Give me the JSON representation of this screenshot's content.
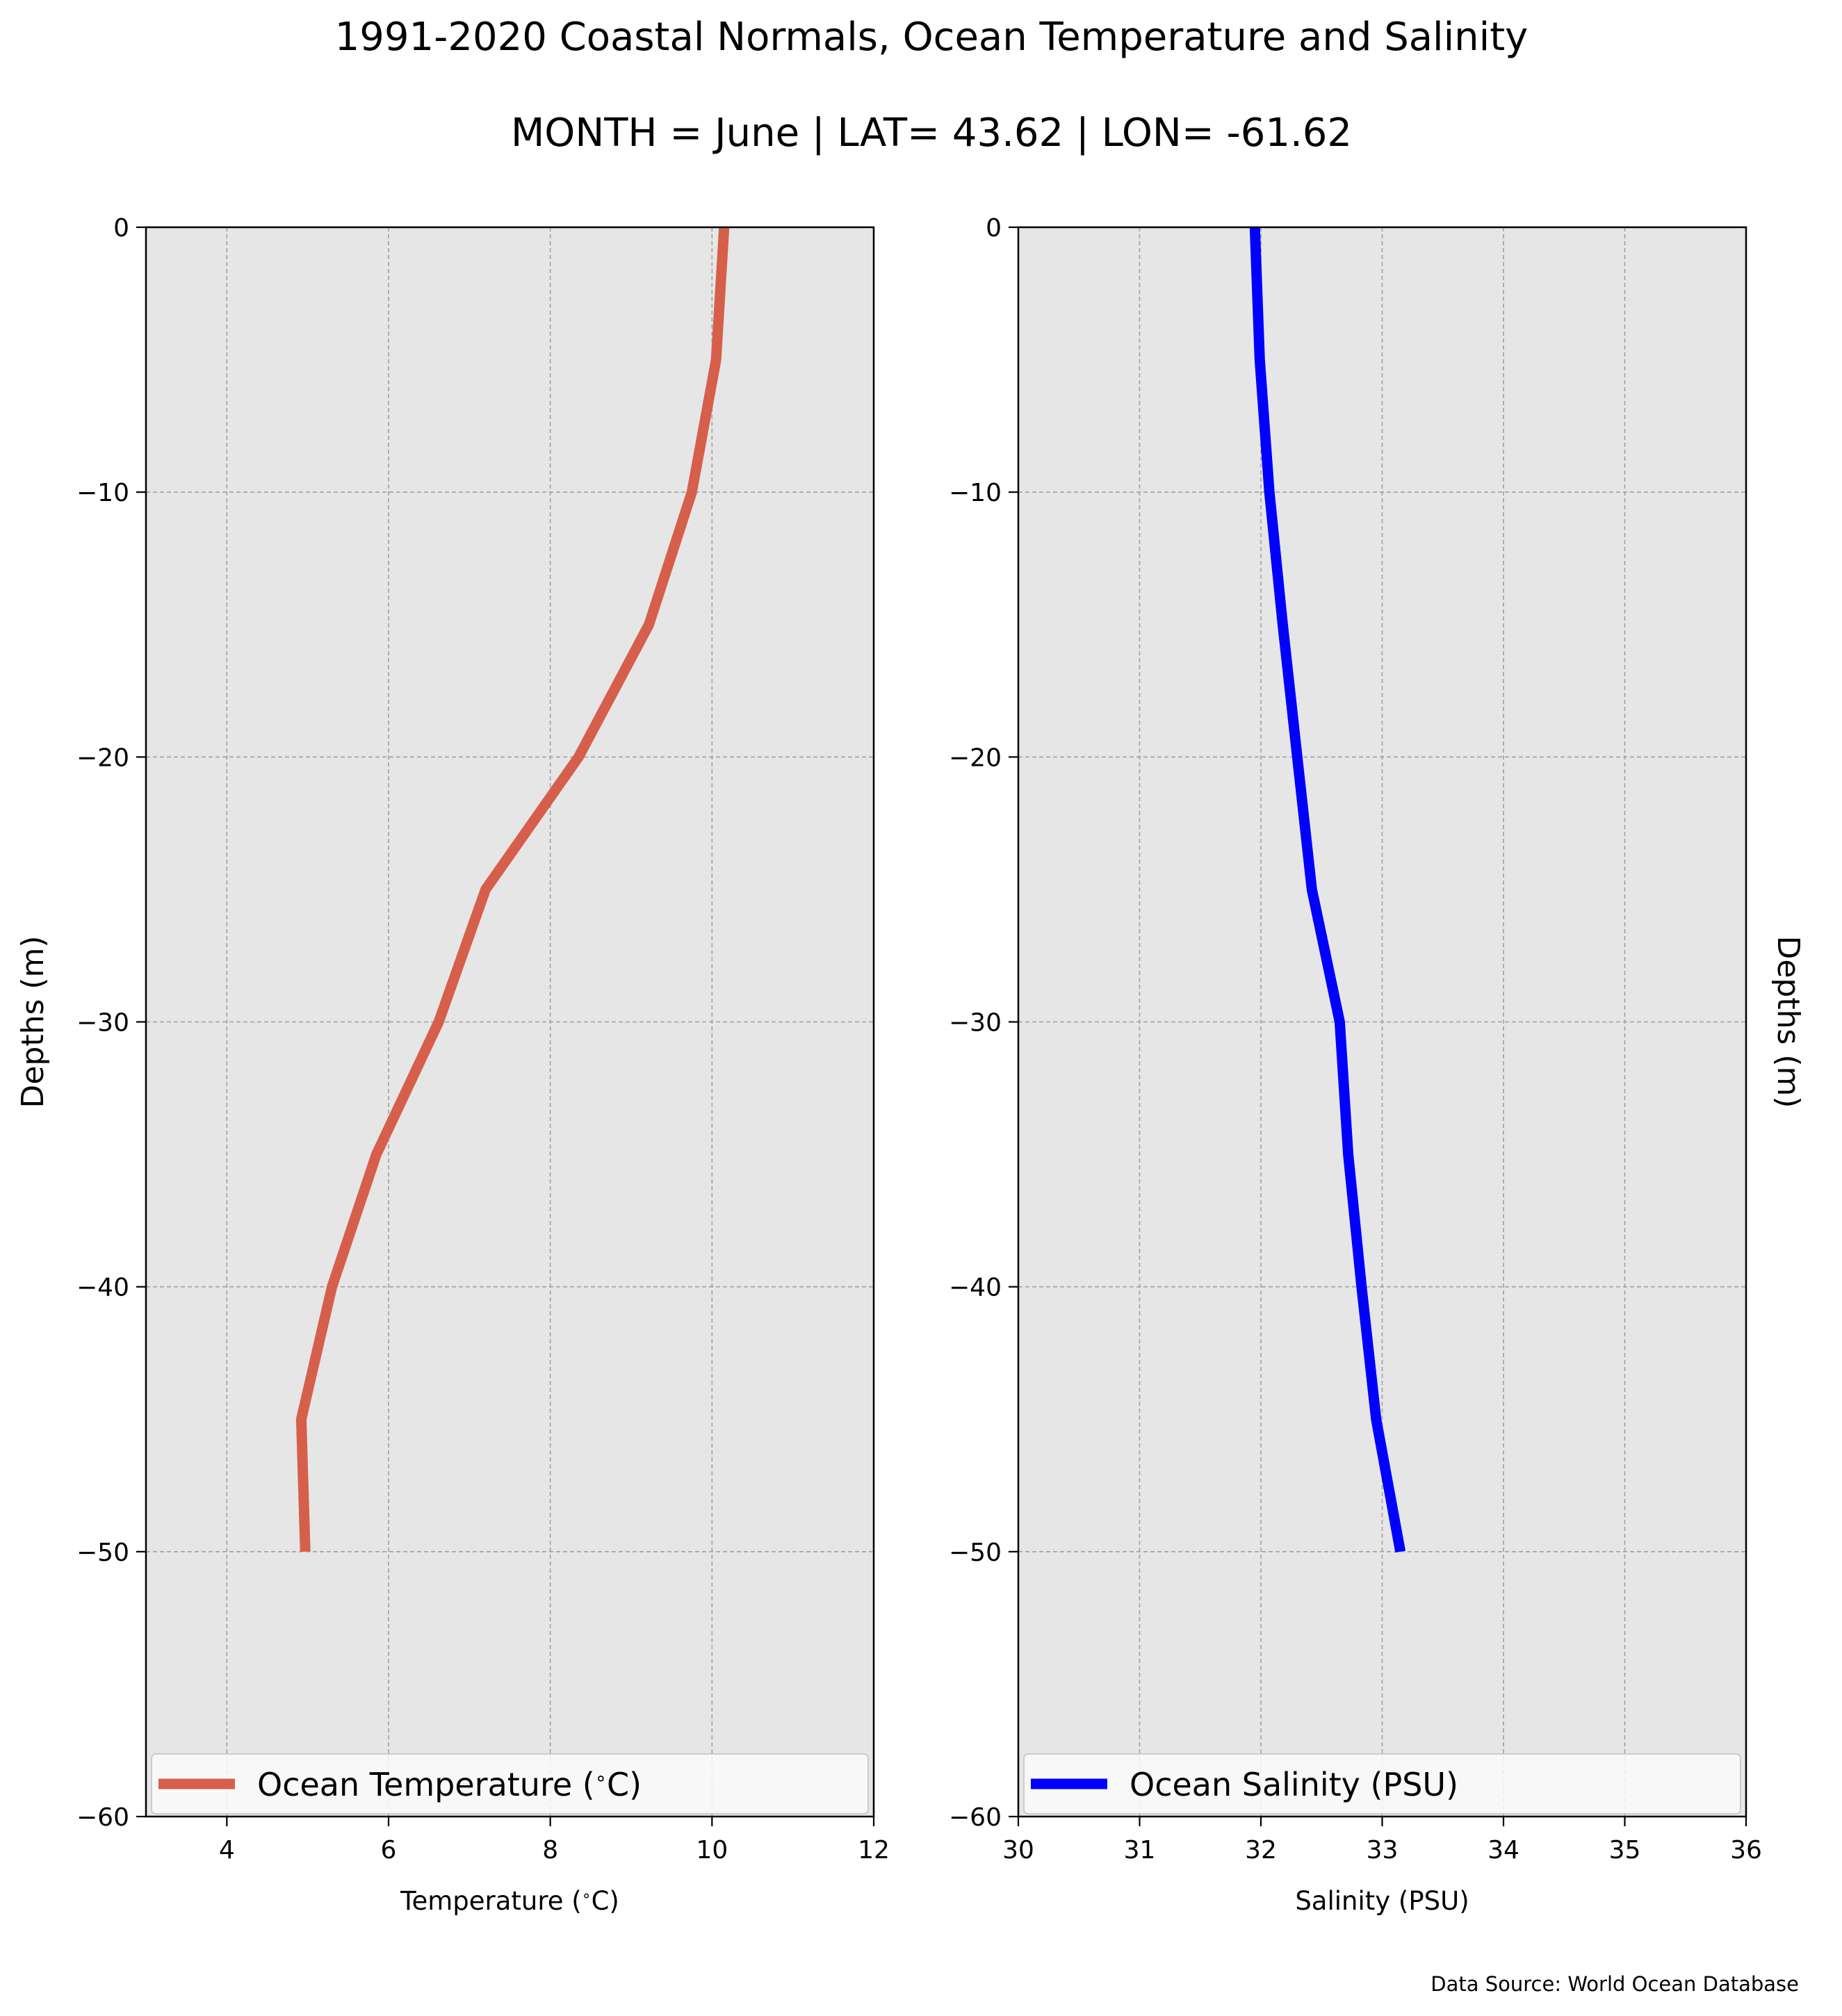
{
  "title": "1991-2020 Coastal Normals, Ocean Temperature and Salinity",
  "subtitle": "MONTH = June | LAT= 43.62 | LON= -61.62",
  "source": "Data Source: World Ocean Database",
  "colors": {
    "panel_bg": "#e6e6e6",
    "grid": "#a0a0a0",
    "temperature": "#d65f4b",
    "salinity": "#0000ff"
  },
  "chart_data": [
    {
      "type": "line",
      "xlabel": "Temperature ($^\\circ$C)",
      "ylabel": "Depths (m)",
      "ylabel_side": "left",
      "xlim": [
        3,
        12
      ],
      "ylim": [
        -60,
        0
      ],
      "xticks": [
        4,
        6,
        8,
        10,
        12
      ],
      "yticks": [
        0,
        -10,
        -20,
        -30,
        -40,
        -50,
        -60
      ],
      "grid": true,
      "legend_location": "lower center",
      "series": [
        {
          "name": "Ocean Temperature ($^\\circ$C)",
          "color": "#d65f4b",
          "x": [
            10.15,
            10.05,
            9.75,
            9.22,
            8.35,
            7.2,
            6.62,
            5.85,
            5.3,
            4.92,
            4.97
          ],
          "y": [
            0,
            -5,
            -10,
            -15,
            -20,
            -25,
            -30,
            -35,
            -40,
            -45,
            -50
          ]
        }
      ]
    },
    {
      "type": "line",
      "xlabel": "Salinity (PSU)",
      "ylabel": "Depths (m)",
      "ylabel_side": "right",
      "xlim": [
        30,
        36
      ],
      "ylim": [
        -60,
        0
      ],
      "xticks": [
        30,
        31,
        32,
        33,
        34,
        35,
        36
      ],
      "yticks": [
        0,
        -10,
        -20,
        -30,
        -40,
        -50,
        -60
      ],
      "grid": true,
      "legend_location": "lower center",
      "series": [
        {
          "name": "Ocean Salinity (PSU)",
          "color": "#0000ff",
          "x": [
            31.95,
            31.99,
            32.07,
            32.18,
            32.3,
            32.42,
            32.65,
            32.72,
            32.83,
            32.95,
            33.15
          ],
          "y": [
            0,
            -5,
            -10,
            -15,
            -20,
            -25,
            -30,
            -35,
            -40,
            -45,
            -50
          ]
        }
      ]
    }
  ]
}
